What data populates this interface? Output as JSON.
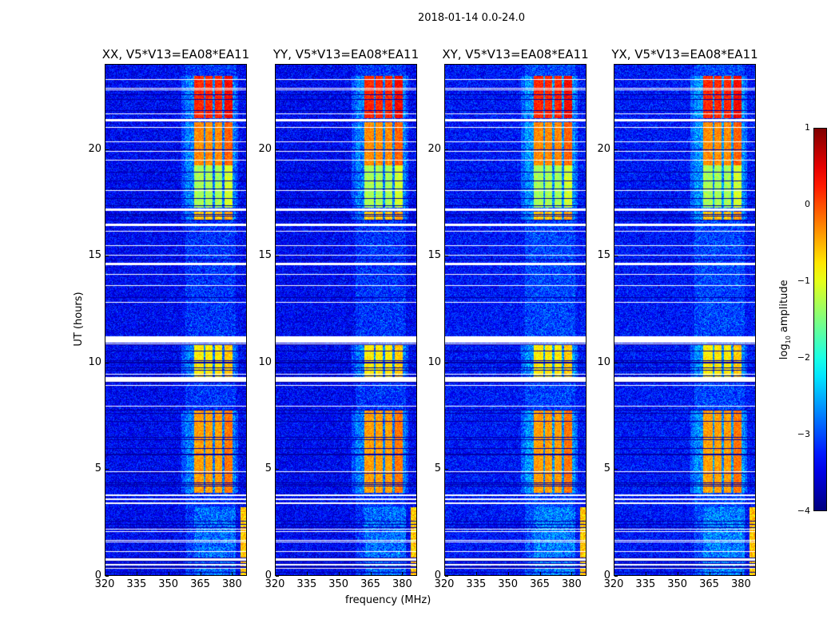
{
  "suptitle": "2018-01-14 0.0-24.0",
  "chart_data": {
    "type": "heatmap",
    "title": "2018-01-14 0.0-24.0",
    "xlabel": "frequency (MHz)",
    "ylabel": "UT (hours)",
    "xlim": [
      320,
      387
    ],
    "ylim": [
      0,
      24
    ],
    "xticks": [
      "320",
      "335",
      "350",
      "365",
      "380"
    ],
    "xtick_values": [
      320,
      335,
      350,
      365,
      380
    ],
    "yticks": [
      "0",
      "5",
      "10",
      "15",
      "20"
    ],
    "ytick_values": [
      0,
      5,
      10,
      15,
      20
    ],
    "panels": [
      {
        "title": "XX, V5*V13=EA08*EA11"
      },
      {
        "title": "YY, V5*V13=EA08*EA11"
      },
      {
        "title": "XY, V5*V13=EA08*EA11"
      },
      {
        "title": "YX, V5*V13=EA08*EA11"
      }
    ],
    "band_channels_mhz": [
      [
        362,
        366.5
      ],
      [
        367.5,
        371
      ],
      [
        372,
        375.5
      ],
      [
        376.5,
        380.5
      ]
    ],
    "bright_periods": [
      {
        "t": [
          3.9,
          7.8
        ],
        "level": -0.4
      },
      {
        "t": [
          9.3,
          10.9
        ],
        "level": -0.8
      },
      {
        "t": [
          16.7,
          17.1
        ],
        "level": -0.6
      },
      {
        "t": [
          17.3,
          19.3
        ],
        "level": -1.3
      },
      {
        "t": [
          19.3,
          21.3
        ],
        "level": -0.3
      },
      {
        "t": [
          21.5,
          23.5
        ],
        "level": 0.2
      }
    ],
    "flagged_periods": [
      [
        3.35,
        3.45
      ],
      [
        3.55,
        3.62
      ],
      [
        3.75,
        3.8
      ],
      [
        9.1,
        9.3
      ],
      [
        10.95,
        11.25
      ],
      [
        16.45,
        16.55
      ],
      [
        17.15,
        17.25
      ],
      [
        19.5,
        19.55
      ],
      [
        21.35,
        21.45
      ],
      [
        23.3,
        23.35
      ],
      [
        0.75,
        0.8
      ],
      [
        2.05,
        2.1
      ]
    ],
    "colorbar": {
      "label": "log10 amplitude",
      "label_main": "log",
      "label_sub": "10",
      "label_rest": " amplitude",
      "range": [
        -4,
        1
      ],
      "ticks": [
        "1",
        "0",
        "−1",
        "−2",
        "−3",
        "−4"
      ],
      "tick_values": [
        1,
        0,
        -1,
        -2,
        -3,
        -4
      ],
      "colormap": "jet"
    }
  }
}
